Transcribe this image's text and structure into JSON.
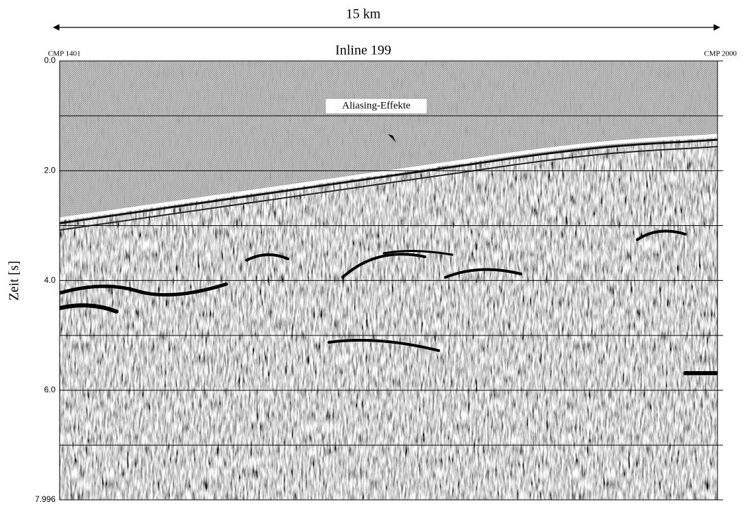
{
  "chart_data": {
    "type": "seismic-section",
    "title": "Inline 199",
    "scale_label": "15 km",
    "left_label": "CMP 1401",
    "right_label": "CMP 2000",
    "ylabel": "Zeit [s]",
    "ylim": [
      0,
      7.996
    ],
    "y_inverted": true,
    "yticks": [
      {
        "value": 0,
        "label": "0.0"
      },
      {
        "value": 2,
        "label": "2.0"
      },
      {
        "value": 4,
        "label": "4.0"
      },
      {
        "value": 6,
        "label": "6.0"
      },
      7.996
    ],
    "minor_yticks": [
      1,
      3,
      5,
      7
    ],
    "grid": true,
    "annotations": [
      {
        "text": "Aliasing-Effekte"
      }
    ]
  }
}
